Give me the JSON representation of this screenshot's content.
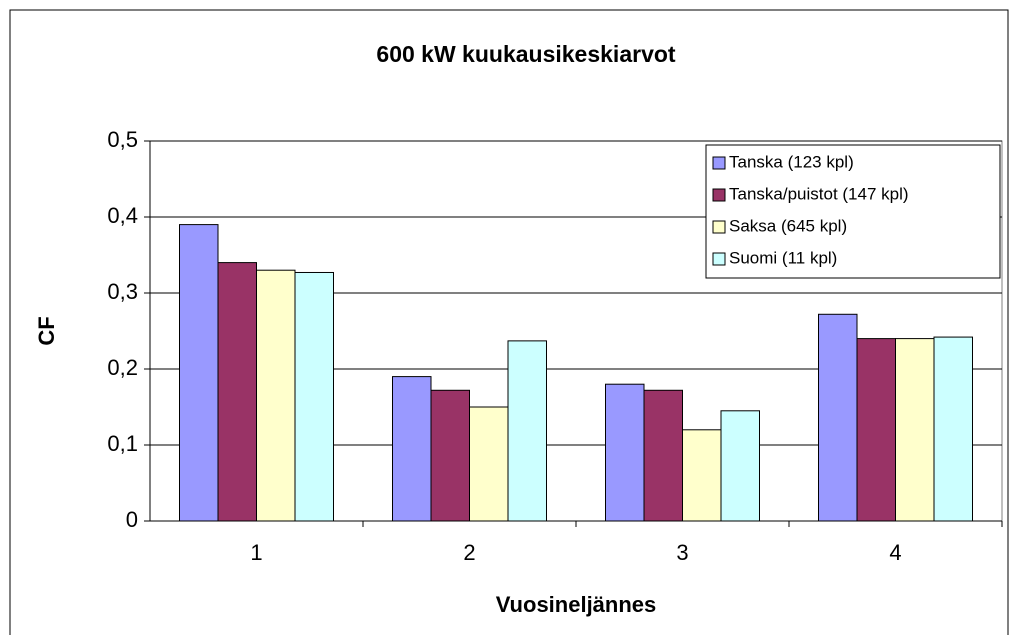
{
  "chart_data": {
    "type": "bar",
    "title": "600 kW kuukausikeskiarvot",
    "x_label": "Vuosineljännes",
    "y_label": "CF",
    "categories": [
      "1",
      "2",
      "3",
      "4"
    ],
    "series": [
      {
        "name": "Tanska (123 kpl)",
        "color": "#9999ff",
        "values": [
          0.39,
          0.19,
          0.18,
          0.272
        ]
      },
      {
        "name": "Tanska/puistot (147 kpl)",
        "color": "#993366",
        "values": [
          0.34,
          0.172,
          0.172,
          0.24
        ]
      },
      {
        "name": "Saksa (645 kpl)",
        "color": "#ffffcc",
        "values": [
          0.33,
          0.15,
          0.12,
          0.24
        ]
      },
      {
        "name": "Suomi (11 kpl)",
        "color": "#ccffff",
        "values": [
          0.327,
          0.237,
          0.145,
          0.242
        ]
      }
    ],
    "ylim": [
      0,
      0.5
    ],
    "yticks": [
      0,
      {
        "value": 0.1,
        "label": "0,1"
      },
      {
        "value": 0.2,
        "label": "0,2"
      },
      {
        "value": 0.3,
        "label": "0,3"
      },
      {
        "value": 0.4,
        "label": "0,4"
      },
      {
        "value": 0.5,
        "label": "0,5"
      }
    ],
    "grid": true,
    "legend": "upper-right"
  }
}
